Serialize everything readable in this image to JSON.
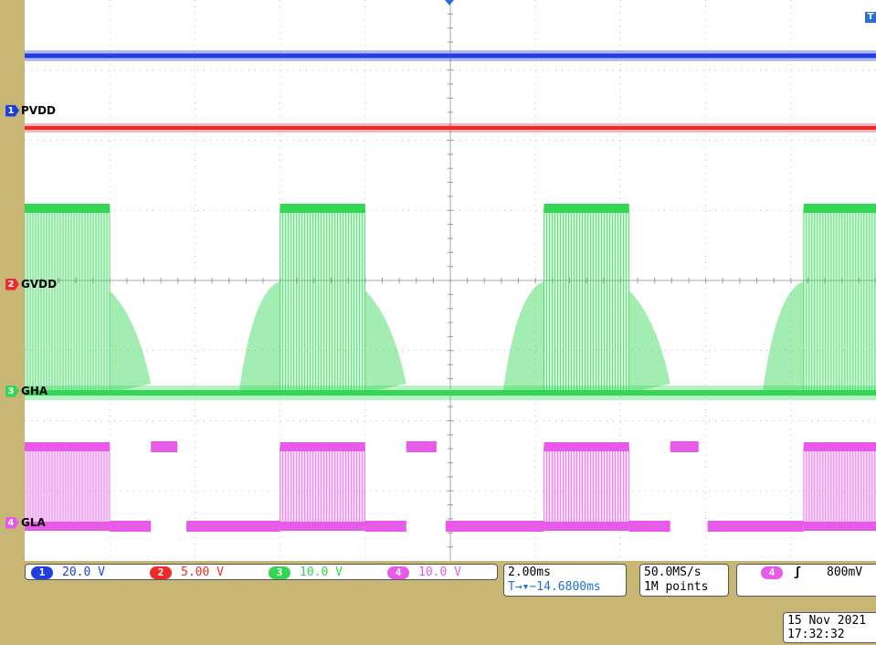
{
  "channels": [
    {
      "num": "1",
      "name": "PVDD",
      "color": "#1f3fe0",
      "scale": "20.0 V"
    },
    {
      "num": "2",
      "name": "GVDD",
      "color": "#ee2a2a",
      "scale": "5.00 V"
    },
    {
      "num": "3",
      "name": "GHA",
      "color": "#33d655",
      "scale": "10.0 V"
    },
    {
      "num": "4",
      "name": "GLA",
      "color": "#e85ae8",
      "scale": "10.0 V"
    }
  ],
  "horizontal": {
    "timebase": "2.00ms",
    "trigger_position": "▾−14.6800ms",
    "trigger_icon": "T→"
  },
  "acquisition": {
    "sample_rate": "50.0MS/s",
    "record_length": "1M points"
  },
  "trigger": {
    "source": "4",
    "slope": "ʃ",
    "level": "800mV",
    "marker": "T"
  },
  "timestamp": {
    "date": "15 Nov 2021",
    "time": "17:32:32"
  },
  "waveform": {
    "pwm_bursts": [
      {
        "start_div": 0.0,
        "end_div": 1.0
      },
      {
        "start_div": 3.0,
        "end_div": 4.0
      },
      {
        "start_div": 6.1,
        "end_div": 7.1
      },
      {
        "start_div": 9.15,
        "end_div": 10.0
      }
    ]
  }
}
